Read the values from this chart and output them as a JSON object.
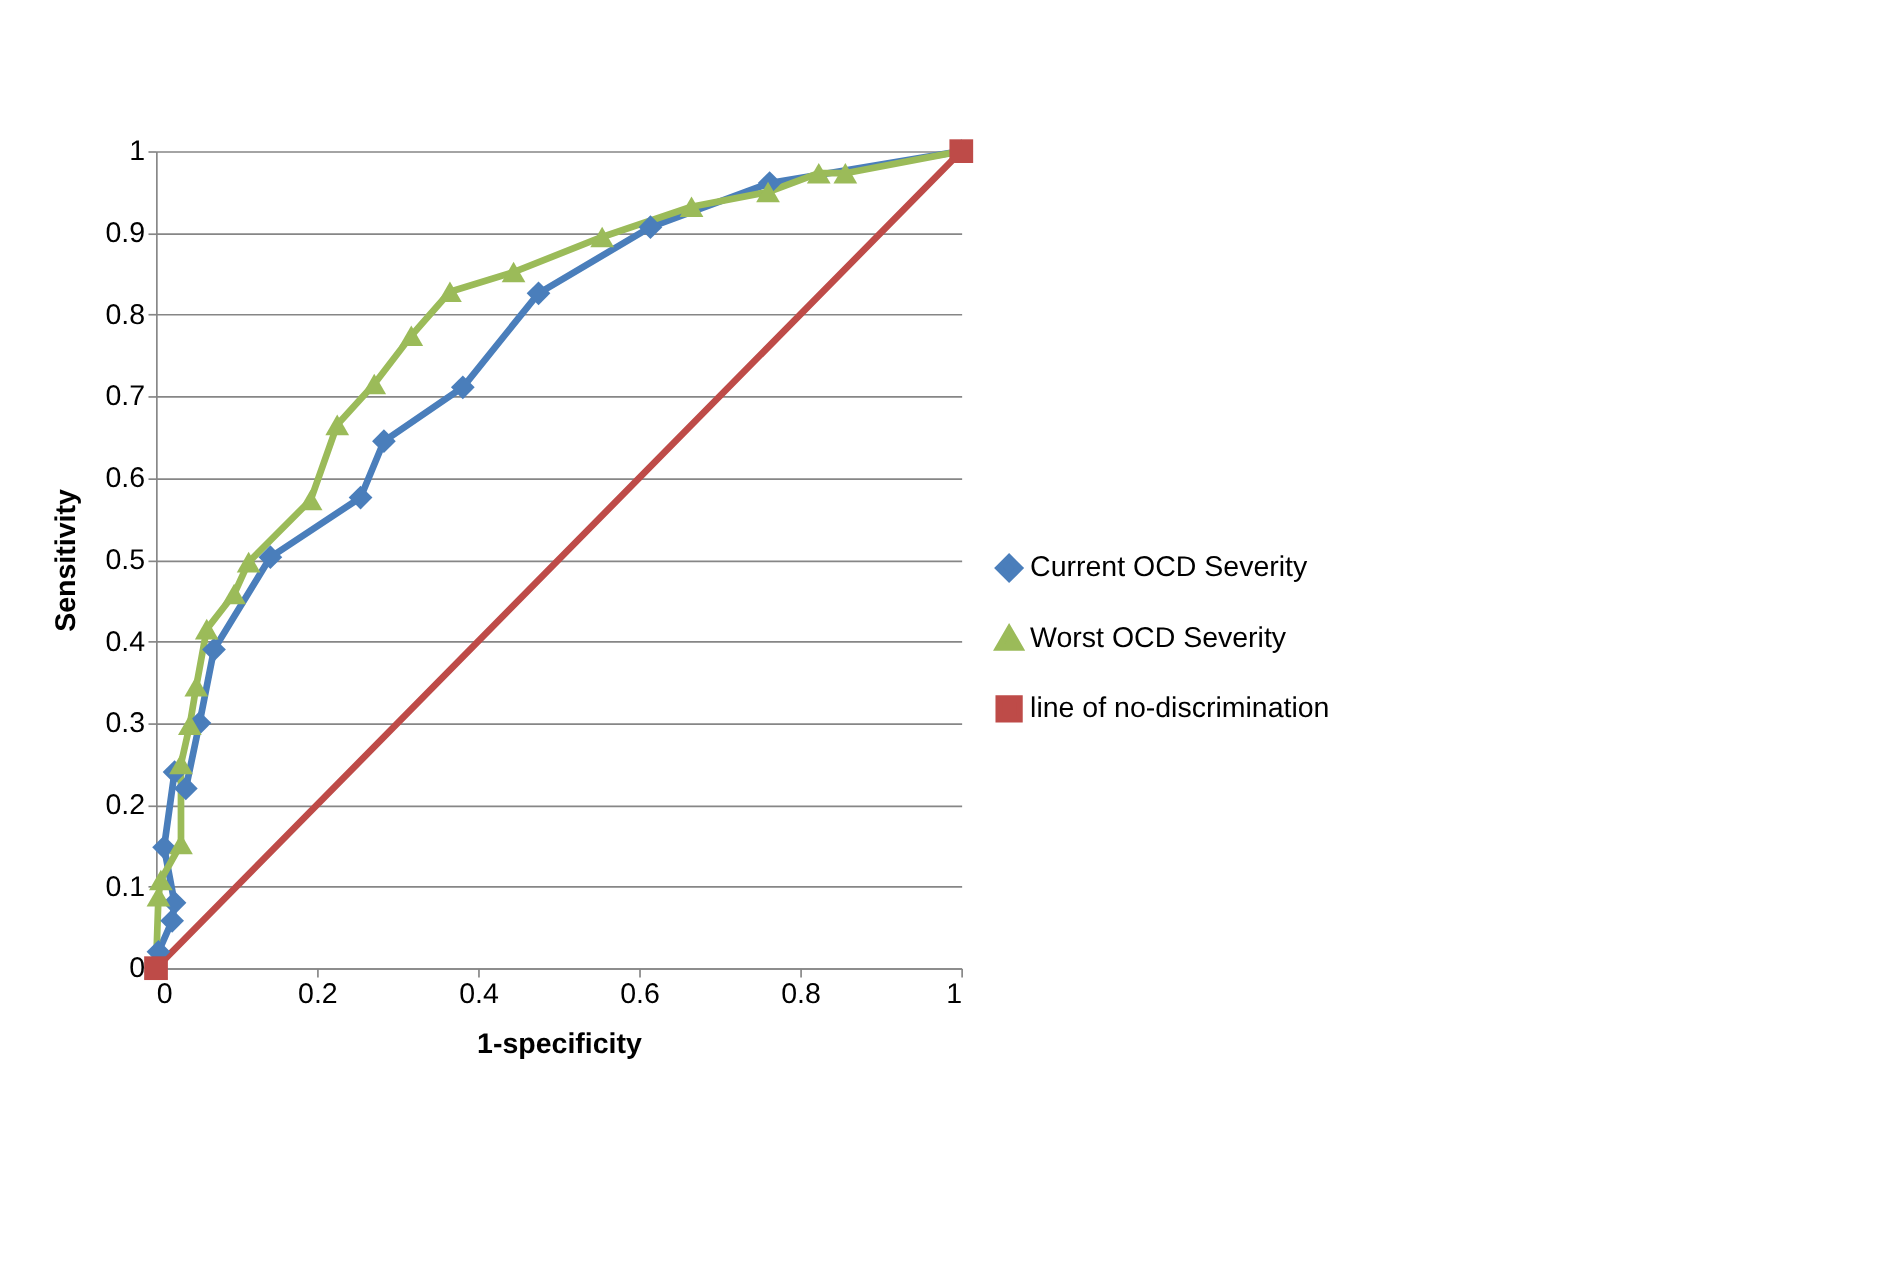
{
  "chart_data": {
    "type": "line",
    "xlabel": "1-specificity",
    "ylabel": "Sensitivity",
    "xlim": [
      0,
      1
    ],
    "xticks": [
      0,
      0.2,
      0.4,
      0.6,
      0.8,
      1
    ],
    "ylim": [
      0,
      1
    ],
    "yticks": [
      0,
      0.1,
      0.2,
      0.3,
      0.4,
      0.5,
      0.6,
      0.7,
      0.8,
      0.9,
      1
    ],
    "grid": "y",
    "legend": "right",
    "line_style": "solid",
    "series": [
      {
        "name": "Current OCD Severity",
        "color": "#4a7ebb",
        "marker": "diamond",
        "x": [
          0,
          0.003,
          0.02,
          0.023,
          0.01,
          0.023,
          0.037,
          0.054,
          0.072,
          0.142,
          0.254,
          0.283,
          0.381,
          0.475,
          0.614,
          0.762,
          1
        ],
        "values": [
          0,
          0.02,
          0.058,
          0.08,
          0.148,
          0.24,
          0.22,
          0.3,
          0.39,
          0.503,
          0.576,
          0.645,
          0.711,
          0.826,
          0.907,
          0.961,
          1
        ]
      },
      {
        "name": "Worst OCD Severity",
        "color": "#9bbb59",
        "marker": "triangle",
        "x": [
          0,
          0.003,
          0.006,
          0.031,
          0.031,
          0.042,
          0.05,
          0.063,
          0.097,
          0.115,
          0.192,
          0.225,
          0.271,
          0.317,
          0.365,
          0.444,
          0.554,
          0.665,
          0.76,
          0.823,
          0.856,
          1
        ],
        "values": [
          0,
          0.088,
          0.108,
          0.152,
          0.25,
          0.298,
          0.345,
          0.415,
          0.458,
          0.497,
          0.573,
          0.665,
          0.715,
          0.774,
          0.828,
          0.852,
          0.895,
          0.932,
          0.95,
          0.973,
          0.973,
          1
        ]
      },
      {
        "name": "line of no-discrimination",
        "color": "#be4b48",
        "marker": "square",
        "x": [
          0,
          1
        ],
        "values": [
          0,
          1
        ]
      }
    ]
  }
}
